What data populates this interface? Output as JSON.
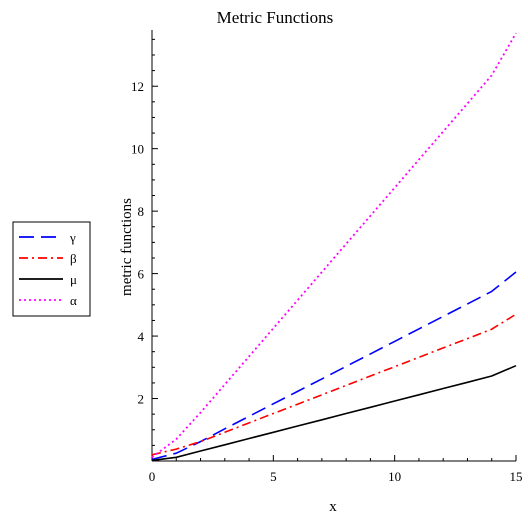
{
  "chart_data": {
    "type": "line",
    "title": "Metric Functions",
    "xlabel": "x",
    "ylabel": "metric functions",
    "xlim": [
      0,
      15
    ],
    "ylim": [
      0,
      13.8
    ],
    "x_ticks": [
      0,
      5,
      10,
      15
    ],
    "y_ticks": [
      2,
      4,
      6,
      8,
      10,
      12
    ],
    "grid": false,
    "legend_position": "left",
    "series": [
      {
        "name": "γ",
        "color": "#0000ff",
        "style": "longdash",
        "x": [
          0,
          1,
          2,
          3,
          4,
          5,
          6,
          7,
          8,
          9,
          10,
          11,
          12,
          13,
          14,
          15
        ],
        "y": [
          0.05,
          0.25,
          0.62,
          1.03,
          1.43,
          1.83,
          2.23,
          2.63,
          3.03,
          3.43,
          3.83,
          4.23,
          4.63,
          5.03,
          5.43,
          6.05
        ]
      },
      {
        "name": "β",
        "color": "#ff0000",
        "style": "dashdot",
        "x": [
          0,
          1,
          2,
          3,
          4,
          5,
          6,
          7,
          8,
          9,
          10,
          11,
          12,
          13,
          14,
          15
        ],
        "y": [
          0.2,
          0.38,
          0.62,
          0.92,
          1.22,
          1.52,
          1.82,
          2.12,
          2.42,
          2.72,
          3.02,
          3.32,
          3.62,
          3.92,
          4.22,
          4.7
        ]
      },
      {
        "name": "μ",
        "color": "#000000",
        "style": "solid",
        "x": [
          0,
          1,
          2,
          3,
          4,
          5,
          6,
          7,
          8,
          9,
          10,
          11,
          12,
          13,
          14,
          15
        ],
        "y": [
          0.02,
          0.12,
          0.32,
          0.52,
          0.72,
          0.92,
          1.12,
          1.32,
          1.52,
          1.72,
          1.92,
          2.12,
          2.32,
          2.52,
          2.72,
          3.05
        ]
      },
      {
        "name": "α",
        "color": "#ff00ff",
        "style": "dotted",
        "x": [
          0,
          1,
          2,
          3,
          4,
          5,
          6,
          7,
          8,
          9,
          10,
          11,
          12,
          13,
          14,
          15
        ],
        "y": [
          0.12,
          0.7,
          1.55,
          2.45,
          3.35,
          4.25,
          5.15,
          6.05,
          6.95,
          7.85,
          8.75,
          9.65,
          10.55,
          11.45,
          12.35,
          13.7
        ]
      }
    ]
  }
}
